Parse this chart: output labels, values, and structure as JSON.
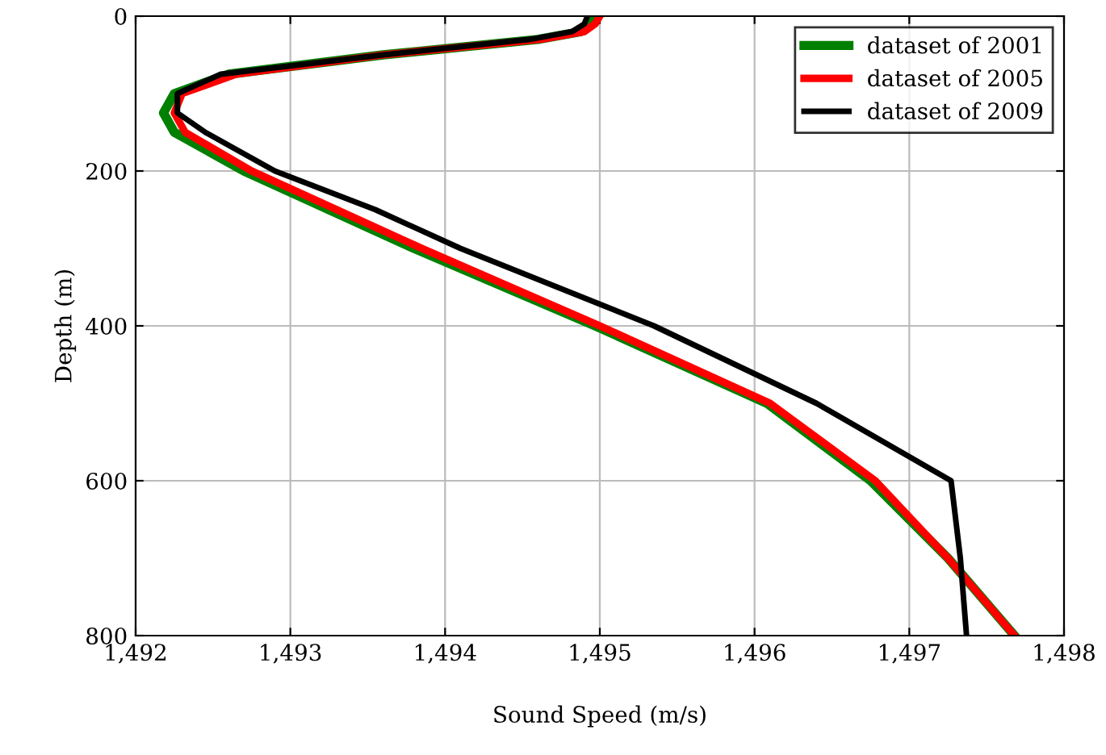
{
  "chart_data": {
    "type": "line",
    "xlabel": "Sound Speed (m/s)",
    "ylabel": "Depth (m)",
    "xlim": [
      1492,
      1498
    ],
    "ylim": [
      800,
      0
    ],
    "xticks": [
      {
        "value": 1492,
        "label": "1,492"
      },
      {
        "value": 1493,
        "label": "1,493"
      },
      {
        "value": 1494,
        "label": "1,494"
      },
      {
        "value": 1495,
        "label": "1,495"
      },
      {
        "value": 1496,
        "label": "1,496"
      },
      {
        "value": 1497,
        "label": "1,497"
      },
      {
        "value": 1498,
        "label": "1,498"
      }
    ],
    "yticks": [
      0,
      200,
      400,
      600,
      800
    ],
    "grid": true,
    "legend": "top right",
    "line_style": "solid",
    "marker": "none",
    "series": [
      {
        "name": "dataset of 2001",
        "color": "#008000",
        "x": [
          1494.97,
          1494.95,
          1494.88,
          1494.6,
          1493.6,
          1492.6,
          1492.25,
          1492.18,
          1492.25,
          1492.7,
          1493.25,
          1493.8,
          1494.97,
          1496.08,
          1496.75,
          1497.25,
          1497.68
        ],
        "values": [
          0,
          10,
          20,
          30,
          50,
          75,
          100,
          125,
          150,
          200,
          250,
          300,
          400,
          500,
          600,
          700,
          800
        ]
      },
      {
        "name": "dataset of 2005",
        "color": "#ff0000",
        "x": [
          1495.0,
          1494.97,
          1494.9,
          1494.62,
          1493.6,
          1492.65,
          1492.3,
          1492.25,
          1492.32,
          1492.75,
          1493.3,
          1493.85,
          1495.0,
          1496.1,
          1496.78,
          1497.25,
          1497.68
        ],
        "values": [
          0,
          10,
          20,
          30,
          50,
          75,
          100,
          125,
          150,
          200,
          250,
          300,
          400,
          500,
          600,
          700,
          800
        ]
      },
      {
        "name": "dataset of 2009",
        "color": "#000000",
        "x": [
          1494.92,
          1494.9,
          1494.82,
          1494.55,
          1493.6,
          1492.55,
          1492.27,
          1492.27,
          1492.45,
          1492.9,
          1493.55,
          1494.1,
          1495.35,
          1496.4,
          1497.27,
          1497.33,
          1497.37
        ],
        "values": [
          0,
          10,
          20,
          30,
          50,
          75,
          100,
          125,
          150,
          200,
          250,
          300,
          400,
          500,
          600,
          700,
          800
        ]
      }
    ]
  }
}
